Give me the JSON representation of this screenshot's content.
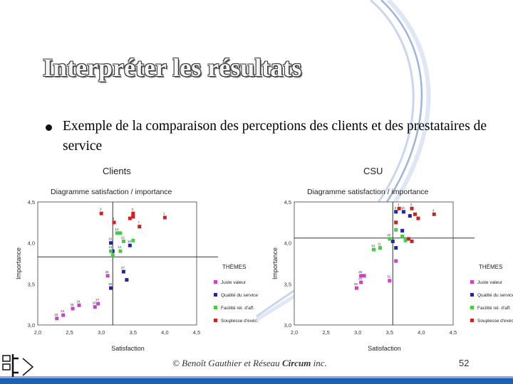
{
  "slide": {
    "title": "Interpréter les résultats",
    "bullet": "Exemple de la comparaison des perceptions des clients et des prestataires de service",
    "footer": {
      "copyright": "© Benoît Gauthier et Réseau ",
      "brand": "Circum",
      "suffix": " inc."
    },
    "page_number": "52",
    "colors": {
      "title": "#f4f4f4",
      "accent": "#8aa7d6",
      "bottom_bar": "#1f5fb0"
    }
  },
  "chart_data": [
    {
      "type": "scatter",
      "header": "Clients",
      "title": "Diagramme satisfaction / importance",
      "xlabel": "Satisfaction",
      "ylabel": "Importance",
      "xlim": [
        2.0,
        4.5
      ],
      "ylim": [
        3.0,
        4.5
      ],
      "xticks": [
        "2,0",
        "2,5",
        "3,0",
        "3,5",
        "4,0",
        "4,5"
      ],
      "yticks": [
        "3,0",
        "3,5",
        "4,0",
        "4,5"
      ],
      "reference_lines": {
        "x": 3.18,
        "y": 3.83
      },
      "legend_title": "THÈMES",
      "series": [
        {
          "name": "Juste valeur",
          "color": "#d040c8",
          "points": [
            {
              "x": 2.3,
              "y": 3.08,
              "label": "18"
            },
            {
              "x": 2.4,
              "y": 3.12,
              "label": "24"
            },
            {
              "x": 2.55,
              "y": 3.2,
              "label": "26"
            },
            {
              "x": 2.65,
              "y": 3.24,
              "label": "24"
            },
            {
              "x": 2.9,
              "y": 3.22,
              "label": "28"
            },
            {
              "x": 2.95,
              "y": 3.26,
              "label": "27"
            },
            {
              "x": 3.1,
              "y": 3.6,
              "label": "25"
            }
          ]
        },
        {
          "name": "Qualité du service",
          "color": "#2222aa",
          "points": [
            {
              "x": 3.15,
              "y": 4.0,
              "label": "10"
            },
            {
              "x": 3.45,
              "y": 3.97,
              "label": "16"
            },
            {
              "x": 3.35,
              "y": 3.65,
              "label": "27"
            },
            {
              "x": 3.4,
              "y": 3.55,
              "label": ""
            },
            {
              "x": 3.15,
              "y": 3.45,
              "label": "30"
            },
            {
              "x": 3.18,
              "y": 3.9,
              "label": ""
            }
          ]
        },
        {
          "name": "Facilité rel. d'aff.",
          "color": "#44cc44",
          "points": [
            {
              "x": 3.25,
              "y": 4.12,
              "label": "14"
            },
            {
              "x": 3.3,
              "y": 4.12,
              "label": ""
            },
            {
              "x": 3.35,
              "y": 4.02,
              "label": "22"
            },
            {
              "x": 3.5,
              "y": 4.03,
              "label": ""
            },
            {
              "x": 3.15,
              "y": 3.9,
              "label": "13"
            },
            {
              "x": 3.3,
              "y": 3.9,
              "label": "12"
            },
            {
              "x": 3.18,
              "y": 3.85,
              "label": ""
            }
          ]
        },
        {
          "name": "Souplesse d'exéc.",
          "color": "#cc2222",
          "points": [
            {
              "x": 3.0,
              "y": 4.36,
              "label": "2"
            },
            {
              "x": 3.5,
              "y": 4.36,
              "label": "3"
            },
            {
              "x": 3.5,
              "y": 4.32,
              "label": ""
            },
            {
              "x": 3.45,
              "y": 4.3,
              "label": ""
            },
            {
              "x": 3.2,
              "y": 4.25,
              "label": "6"
            },
            {
              "x": 3.6,
              "y": 4.2,
              "label": "7"
            },
            {
              "x": 4.0,
              "y": 4.31,
              "label": "1"
            }
          ]
        }
      ]
    },
    {
      "type": "scatter",
      "header": "CSU",
      "title": "Diagramme satisfaction / importance",
      "xlabel": "Satisfaction",
      "ylabel": "Importance",
      "xlim": [
        2.0,
        4.5
      ],
      "ylim": [
        3.0,
        4.5
      ],
      "xticks": [
        "2,0",
        "2,5",
        "3,0",
        "3,5",
        "4,0",
        "4,5"
      ],
      "yticks": [
        "3,0",
        "3,5",
        "4,0",
        "4,5"
      ],
      "reference_lines": {
        "x": 3.55,
        "y": 4.06
      },
      "legend_title": "THÈMES",
      "series": [
        {
          "name": "Juste valeur",
          "color": "#d040c8",
          "points": [
            {
              "x": 2.98,
              "y": 3.45,
              "label": "29"
            },
            {
              "x": 3.05,
              "y": 3.52,
              "label": "25"
            },
            {
              "x": 3.05,
              "y": 3.6,
              "label": "26"
            },
            {
              "x": 3.1,
              "y": 3.6,
              "label": ""
            },
            {
              "x": 3.5,
              "y": 3.54,
              "label": "31"
            },
            {
              "x": 3.6,
              "y": 3.78,
              "label": ""
            }
          ]
        },
        {
          "name": "Qualité du service",
          "color": "#2222aa",
          "points": [
            {
              "x": 3.6,
              "y": 4.38,
              "label": "3"
            },
            {
              "x": 3.72,
              "y": 4.38,
              "label": "10"
            },
            {
              "x": 3.82,
              "y": 4.33,
              "label": ""
            },
            {
              "x": 3.7,
              "y": 4.15,
              "label": ""
            },
            {
              "x": 3.55,
              "y": 4.02,
              "label": ""
            },
            {
              "x": 3.6,
              "y": 3.94,
              "label": ""
            }
          ]
        },
        {
          "name": "Facilité rel. d'aff.",
          "color": "#44cc44",
          "points": [
            {
              "x": 3.25,
              "y": 3.92,
              "label": "13"
            },
            {
              "x": 3.35,
              "y": 3.94,
              "label": "11"
            },
            {
              "x": 3.7,
              "y": 4.08,
              "label": ""
            },
            {
              "x": 3.75,
              "y": 4.03,
              "label": ""
            },
            {
              "x": 3.6,
              "y": 4.16,
              "label": ""
            },
            {
              "x": 3.5,
              "y": 4.05,
              "label": "22"
            },
            {
              "x": 3.6,
              "y": 4.25,
              "label": ""
            }
          ]
        },
        {
          "name": "Souplesse d'exéc.",
          "color": "#cc2222",
          "points": [
            {
              "x": 3.65,
              "y": 4.42,
              "label": "1"
            },
            {
              "x": 3.85,
              "y": 4.42,
              "label": "2"
            },
            {
              "x": 3.9,
              "y": 4.35,
              "label": ""
            },
            {
              "x": 3.95,
              "y": 4.3,
              "label": ""
            },
            {
              "x": 4.2,
              "y": 4.35,
              "label": "4"
            },
            {
              "x": 3.8,
              "y": 4.05,
              "label": ""
            },
            {
              "x": 3.85,
              "y": 4.02,
              "label": ""
            },
            {
              "x": 3.6,
              "y": 4.25,
              "label": ""
            }
          ]
        }
      ]
    }
  ]
}
